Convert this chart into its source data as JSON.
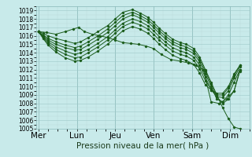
{
  "title": "Pression niveau de la mer( hPa )",
  "bg_color": "#c8eaea",
  "line_color": "#1a5c1a",
  "ylim": [
    1005,
    1019.5
  ],
  "yticks": [
    1005,
    1006,
    1007,
    1008,
    1009,
    1010,
    1011,
    1012,
    1013,
    1014,
    1015,
    1016,
    1017,
    1018,
    1019
  ],
  "xtick_labels": [
    "Mer",
    "Lun",
    "Jeu",
    "Ven",
    "Sam",
    "Dim"
  ],
  "xtick_positions": [
    0,
    1,
    2,
    3,
    4,
    5
  ],
  "xlabel_fontsize": 7.5,
  "ylabel_fontsize": 5.5,
  "xlim": [
    -0.05,
    5.5
  ],
  "lines": [
    {
      "x": [
        0.0,
        0.12,
        0.25,
        0.45,
        0.7,
        0.95,
        1.1,
        1.3,
        1.55,
        1.8,
        2.0,
        2.2,
        2.45,
        2.65,
        2.85,
        3.0,
        3.15,
        3.3,
        3.5,
        3.7,
        3.85,
        4.05,
        4.2,
        4.35,
        4.5,
        4.65,
        4.8,
        4.95,
        5.1,
        5.25
      ],
      "y": [
        1016.5,
        1016.3,
        1016.0,
        1015.7,
        1015.4,
        1015.1,
        1015.3,
        1015.8,
        1016.5,
        1017.2,
        1018.0,
        1018.8,
        1019.1,
        1018.7,
        1018.2,
        1017.6,
        1016.9,
        1016.3,
        1015.6,
        1015.2,
        1015.0,
        1014.5,
        1013.5,
        1012.0,
        1010.5,
        1009.0,
        1007.5,
        1006.2,
        1005.2,
        1005.0
      ]
    },
    {
      "x": [
        0.0,
        0.12,
        0.25,
        0.45,
        0.7,
        0.95,
        1.1,
        1.3,
        1.55,
        1.8,
        2.0,
        2.2,
        2.45,
        2.65,
        2.85,
        3.0,
        3.15,
        3.3,
        3.5,
        3.7,
        3.85,
        4.05,
        4.2,
        4.35,
        4.5,
        4.65,
        4.8,
        4.95,
        5.1,
        5.25
      ],
      "y": [
        1016.5,
        1016.1,
        1015.7,
        1015.3,
        1014.9,
        1014.6,
        1014.8,
        1015.3,
        1016.0,
        1016.8,
        1017.6,
        1018.4,
        1018.8,
        1018.4,
        1017.9,
        1017.3,
        1016.6,
        1016.0,
        1015.3,
        1014.9,
        1014.7,
        1014.2,
        1013.2,
        1011.8,
        1010.3,
        1008.8,
        1008.0,
        1008.5,
        1009.5,
        1011.8
      ]
    },
    {
      "x": [
        0.0,
        0.12,
        0.25,
        0.45,
        0.7,
        0.95,
        1.1,
        1.3,
        1.55,
        1.8,
        2.0,
        2.2,
        2.45,
        2.65,
        2.85,
        3.0,
        3.15,
        3.3,
        3.5,
        3.7,
        3.85,
        4.05,
        4.2,
        4.35,
        4.5,
        4.65,
        4.8,
        4.95,
        5.1,
        5.25
      ],
      "y": [
        1016.5,
        1016.0,
        1015.5,
        1015.0,
        1014.6,
        1014.3,
        1014.4,
        1014.9,
        1015.6,
        1016.4,
        1017.2,
        1018.0,
        1018.5,
        1018.1,
        1017.6,
        1017.0,
        1016.3,
        1015.7,
        1015.0,
        1014.6,
        1014.4,
        1013.9,
        1012.9,
        1011.5,
        1010.0,
        1008.5,
        1008.2,
        1009.0,
        1010.5,
        1012.0
      ]
    },
    {
      "x": [
        0.0,
        0.12,
        0.25,
        0.45,
        0.7,
        0.95,
        1.1,
        1.3,
        1.55,
        1.8,
        2.0,
        2.2,
        2.45,
        2.65,
        2.85,
        3.0,
        3.15,
        3.3,
        3.5,
        3.7,
        3.85,
        4.05,
        4.2,
        4.35,
        4.5,
        4.65,
        4.8,
        4.95,
        5.1,
        5.25
      ],
      "y": [
        1016.5,
        1015.9,
        1015.3,
        1014.7,
        1014.2,
        1013.8,
        1014.0,
        1014.4,
        1015.1,
        1015.9,
        1016.7,
        1017.5,
        1018.0,
        1017.7,
        1017.2,
        1016.6,
        1015.9,
        1015.3,
        1014.6,
        1014.2,
        1014.0,
        1013.5,
        1012.5,
        1011.1,
        1009.6,
        1008.8,
        1008.7,
        1009.5,
        1011.0,
        1012.3
      ]
    },
    {
      "x": [
        0.0,
        0.12,
        0.25,
        0.45,
        0.7,
        0.95,
        1.1,
        1.3,
        1.55,
        1.8,
        2.0,
        2.2,
        2.45,
        2.65,
        2.85,
        3.0,
        3.15,
        3.3,
        3.5,
        3.7,
        3.85,
        4.05,
        4.2,
        4.35,
        4.5,
        4.65,
        4.8,
        4.95,
        5.1,
        5.25
      ],
      "y": [
        1016.5,
        1015.8,
        1015.1,
        1014.4,
        1013.8,
        1013.4,
        1013.5,
        1014.0,
        1014.7,
        1015.5,
        1016.3,
        1017.1,
        1017.6,
        1017.3,
        1016.8,
        1016.2,
        1015.5,
        1014.9,
        1014.2,
        1013.8,
        1013.6,
        1013.1,
        1012.1,
        1010.7,
        1009.7,
        1009.0,
        1009.0,
        1009.8,
        1011.3,
        1012.5
      ]
    },
    {
      "x": [
        0.0,
        0.12,
        0.25,
        0.45,
        0.7,
        0.95,
        1.1,
        1.3,
        1.55,
        1.8,
        2.0,
        2.2,
        2.45,
        2.65,
        2.85,
        3.0,
        3.15,
        3.3,
        3.5,
        3.7,
        3.85,
        4.05,
        4.2,
        4.35,
        4.5,
        4.65,
        4.8,
        4.95,
        5.1,
        5.25
      ],
      "y": [
        1016.5,
        1015.7,
        1014.9,
        1014.1,
        1013.4,
        1013.0,
        1013.1,
        1013.5,
        1014.2,
        1015.0,
        1015.8,
        1016.6,
        1017.1,
        1016.8,
        1016.3,
        1015.7,
        1015.0,
        1014.4,
        1013.7,
        1013.3,
        1013.1,
        1012.6,
        1011.6,
        1010.2,
        1009.6,
        1009.2,
        1009.2,
        1010.0,
        1011.5,
        1012.5
      ]
    },
    {
      "x": [
        0.0,
        0.2,
        0.45,
        0.7,
        0.9,
        1.05,
        1.2,
        1.4,
        1.6,
        1.8,
        2.0,
        2.2,
        2.4,
        2.6,
        2.8,
        3.0,
        3.2,
        3.45,
        3.7,
        3.9,
        4.1,
        4.3,
        4.5,
        4.7,
        4.9,
        5.1,
        5.25
      ],
      "y": [
        1016.5,
        1016.4,
        1016.2,
        1016.5,
        1016.8,
        1017.0,
        1016.5,
        1016.2,
        1016.0,
        1015.8,
        1015.5,
        1015.2,
        1015.1,
        1015.0,
        1014.8,
        1014.5,
        1013.8,
        1013.2,
        1013.0,
        1012.8,
        1012.5,
        1012.0,
        1008.2,
        1008.0,
        1008.5,
        1009.5,
        1012.0
      ]
    }
  ],
  "marker": "D",
  "markersize": 1.2,
  "linewidth": 0.7
}
